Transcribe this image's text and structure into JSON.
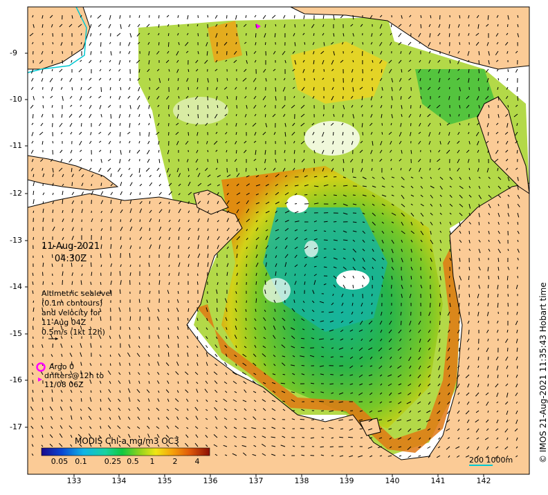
{
  "date_line1": "11-Aug-2021",
  "date_line2": "04:30Z",
  "altimetry": {
    "line1": "Altimetric sealevel",
    "line2": "(0.1m contours)",
    "line3": "and velocity for",
    "line4": "11-Aug 04Z",
    "line5": "0.5m/s (1kt 12h)"
  },
  "argo": {
    "line1": "Argo 0",
    "line2": "drifters@12h to",
    "line3": "11/08 06Z"
  },
  "colorbar": {
    "title": "MODIS Chl-a mg/m3 OC3",
    "ticks": [
      "0.05",
      "0.1",
      "0.25",
      "0.5",
      "1",
      "2",
      "4"
    ]
  },
  "scale_text": "200  1000m",
  "credit": "© IMOS 21-Aug-2021 11:35:43 Hobart time",
  "axes": {
    "lat_ticks": [
      "-9",
      "-10",
      "-11",
      "-12",
      "-13",
      "-14",
      "-15",
      "-16",
      "-17"
    ],
    "lon_ticks": [
      "133",
      "134",
      "135",
      "136",
      "137",
      "138",
      "139",
      "140",
      "141",
      "142"
    ]
  },
  "colors": {
    "land": "#fbcb96",
    "ocean_nodata": "#ffffff",
    "argo_marker": "#ff00ff",
    "bathy_contour": "#00c8d2"
  }
}
